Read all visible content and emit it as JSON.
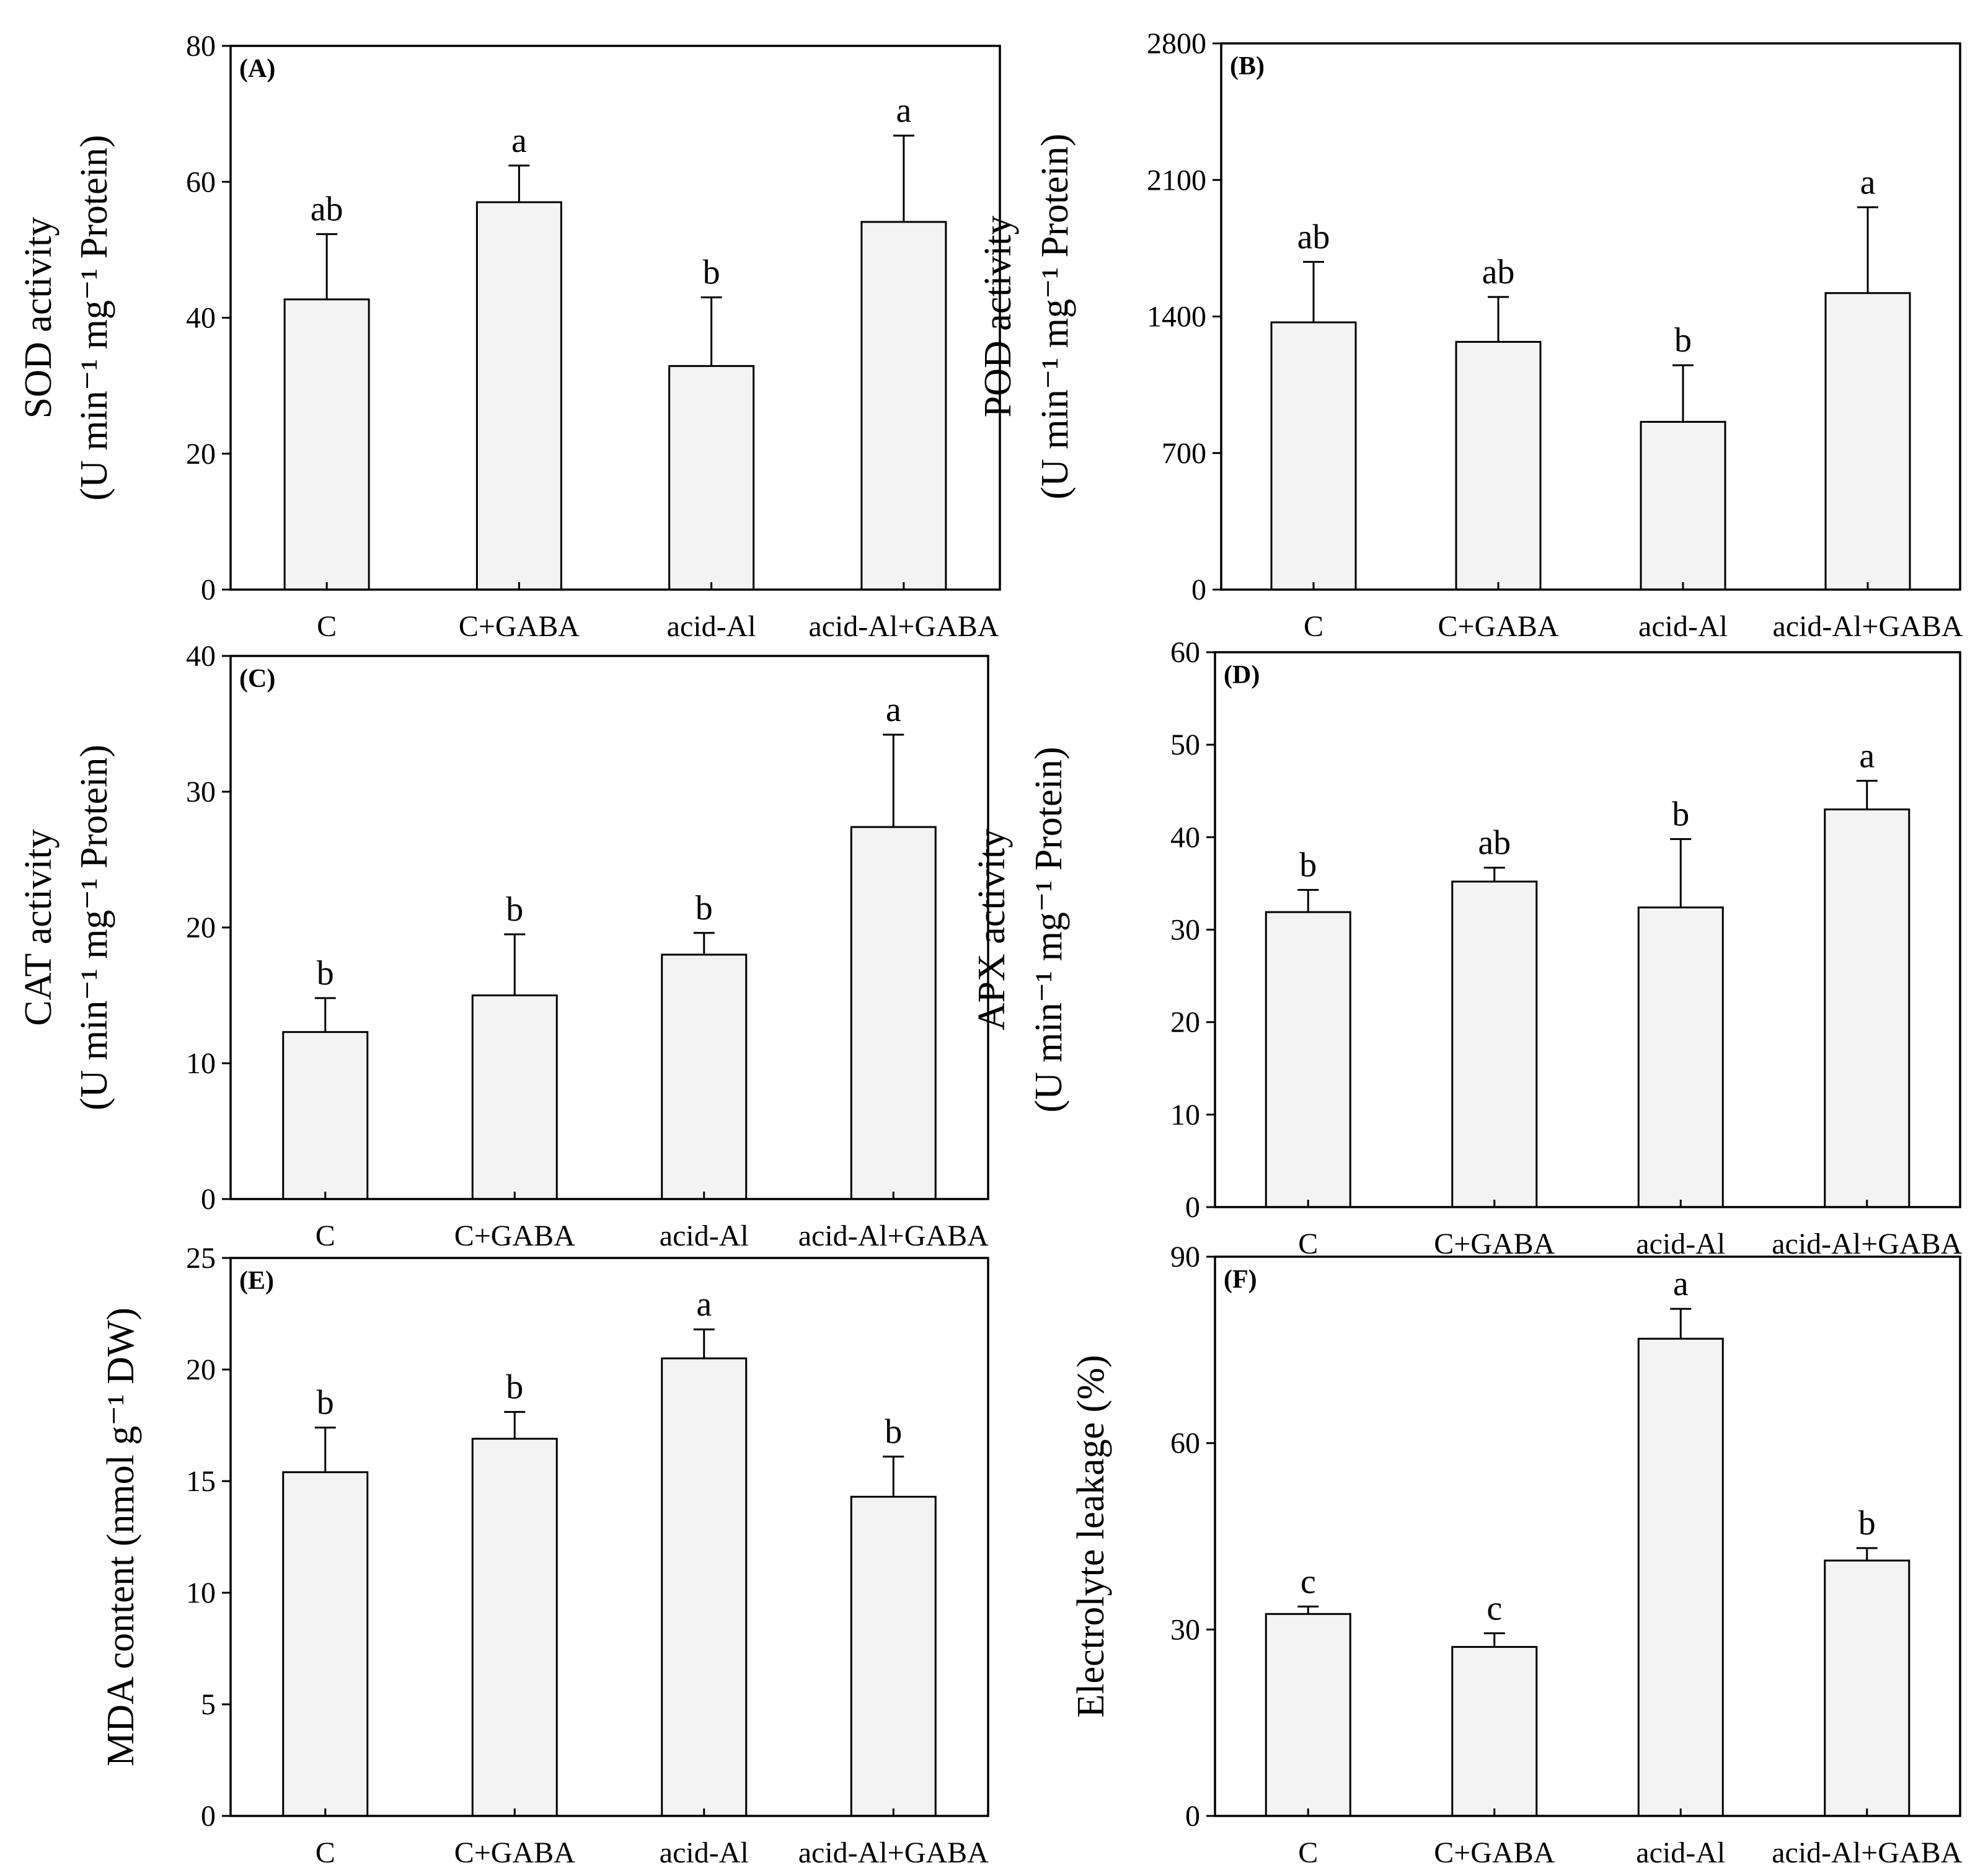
{
  "chart_data": [
    {
      "panel": "(A)",
      "type": "bar",
      "categories": [
        "C",
        "C+GABA",
        "acid-Al",
        "acid-Al+GABA"
      ],
      "values": [
        42.7,
        57.0,
        32.9,
        54.1
      ],
      "errors": [
        9.6,
        5.4,
        10.1,
        12.7
      ],
      "letters": [
        "ab",
        "a",
        "b",
        "a"
      ],
      "ylabel_line1": "SOD activity",
      "ylabel_line2": "(U min⁻¹ mg⁻¹ Protein)",
      "ylim": [
        0,
        80
      ],
      "yticks": [
        "0",
        "20",
        "40",
        "60",
        "80"
      ]
    },
    {
      "panel": "(B)",
      "type": "bar",
      "categories": [
        "C",
        "C+GABA",
        "acid-Al",
        "acid-Al+GABA"
      ],
      "values": [
        1370,
        1270,
        860,
        1520
      ],
      "errors": [
        310,
        230,
        290,
        440
      ],
      "letters": [
        "ab",
        "ab",
        "b",
        "a"
      ],
      "ylabel_line1": "POD activity",
      "ylabel_line2": "(U min⁻¹ mg⁻¹ Protein)",
      "ylim": [
        0,
        2800
      ],
      "yticks": [
        "0",
        "700",
        "1400",
        "2100",
        "2800"
      ]
    },
    {
      "panel": "(C)",
      "type": "bar",
      "categories": [
        "C",
        "C+GABA",
        "acid-Al",
        "acid-Al+GABA"
      ],
      "values": [
        12.3,
        15.0,
        18.0,
        27.4
      ],
      "errors": [
        2.5,
        4.5,
        1.6,
        6.8
      ],
      "letters": [
        "b",
        "b",
        "b",
        "a"
      ],
      "ylabel_line1": "CAT activity",
      "ylabel_line2": "(U min⁻¹ mg⁻¹ Protein)",
      "ylim": [
        0,
        40
      ],
      "yticks": [
        "0",
        "10",
        "20",
        "30",
        "40"
      ]
    },
    {
      "panel": "(D)",
      "type": "bar",
      "categories": [
        "C",
        "C+GABA",
        "acid-Al",
        "acid-Al+GABA"
      ],
      "values": [
        31.9,
        35.2,
        32.4,
        43.0
      ],
      "errors": [
        2.4,
        1.5,
        7.4,
        3.1
      ],
      "letters": [
        "b",
        "ab",
        "b",
        "a"
      ],
      "ylabel_line1": "APX activity",
      "ylabel_line2": "(U min⁻¹ mg⁻¹ Protein)",
      "ylim": [
        0,
        60
      ],
      "yticks": [
        "0",
        "10",
        "20",
        "30",
        "40",
        "50",
        "60"
      ]
    },
    {
      "panel": "(E)",
      "type": "bar",
      "categories": [
        "C",
        "C+GABA",
        "acid-Al",
        "acid-Al+GABA"
      ],
      "values": [
        15.4,
        16.9,
        20.5,
        14.3
      ],
      "errors": [
        2.0,
        1.2,
        1.3,
        1.8
      ],
      "letters": [
        "b",
        "b",
        "a",
        "b"
      ],
      "ylabel_line1": "MDA content (nmol g⁻¹ DW)",
      "ylabel_line2": "",
      "ylim": [
        0,
        25
      ],
      "yticks": [
        "0",
        "5",
        "10",
        "15",
        "20",
        "25"
      ]
    },
    {
      "panel": "(F)",
      "type": "bar",
      "categories": [
        "C",
        "C+GABA",
        "acid-Al",
        "acid-Al+GABA"
      ],
      "values": [
        32.5,
        27.2,
        76.8,
        41.1
      ],
      "errors": [
        1.2,
        2.2,
        4.8,
        2.0
      ],
      "letters": [
        "c",
        "c",
        "a",
        "b"
      ],
      "ylabel_line1": "Electrolyte leakage (%)",
      "ylabel_line2": "",
      "ylim": [
        0,
        90
      ],
      "yticks": [
        "0",
        "30",
        "60",
        "90"
      ]
    }
  ]
}
